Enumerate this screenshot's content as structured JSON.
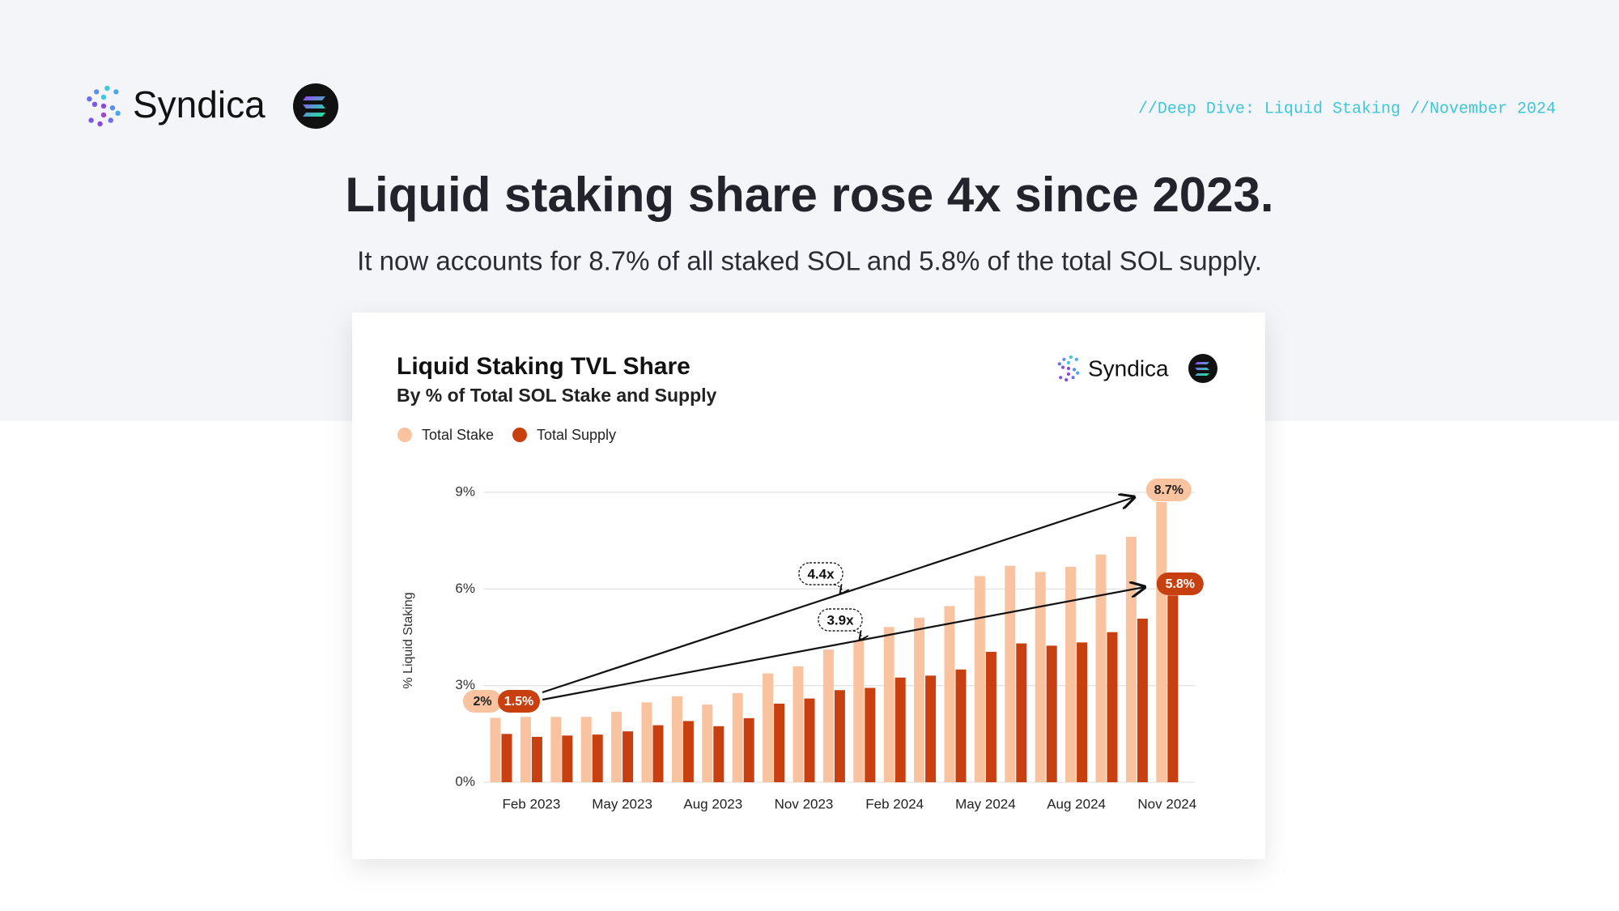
{
  "header": {
    "brand": "Syndica",
    "tagline": "//Deep Dive: Liquid Staking //November 2024",
    "headline": "Liquid staking share rose 4x since 2023.",
    "subheadline": "It now accounts for 8.7% of all staked SOL and 5.8% of the total SOL supply."
  },
  "card": {
    "brand": "Syndica"
  },
  "chart_data": {
    "type": "bar",
    "title": "Liquid Staking TVL Share",
    "subtitle": "By % of Total SOL Stake and Supply",
    "ylabel": "% Liquid Staking",
    "categories": [
      null,
      "Feb 2023",
      null,
      null,
      "May 2023",
      null,
      null,
      "Aug 2023",
      null,
      null,
      "Nov 2023",
      null,
      null,
      "Feb 2024",
      null,
      null,
      "May 2024",
      null,
      null,
      "Aug 2024",
      null,
      null,
      "Nov 2024"
    ],
    "series": [
      {
        "name": "Total Stake",
        "color": "#f9c3a0",
        "values": [
          2,
          2.03,
          2.03,
          2.03,
          2.19,
          2.48,
          2.67,
          2.41,
          2.77,
          3.38,
          3.6,
          4.12,
          4.4,
          4.82,
          5.11,
          5.47,
          6.4,
          6.72,
          6.53,
          6.69,
          7.07,
          7.62,
          8.7
        ]
      },
      {
        "name": "Total Supply",
        "color": "#c8400f",
        "values": [
          1.5,
          1.41,
          1.45,
          1.48,
          1.58,
          1.77,
          1.9,
          1.74,
          1.99,
          2.44,
          2.6,
          2.86,
          2.93,
          3.25,
          3.31,
          3.5,
          4.05,
          4.31,
          4.24,
          4.34,
          4.66,
          5.08,
          5.8
        ]
      }
    ],
    "ylim": [
      0,
      9
    ],
    "yticks": [
      {
        "value": 0,
        "label": "0%"
      },
      {
        "value": 3,
        "label": "3%"
      },
      {
        "value": 6,
        "label": "6%"
      },
      {
        "value": 9,
        "label": "9%"
      }
    ],
    "grid": true,
    "annotations": [
      "2%",
      "1.5%",
      "8.7%",
      "5.8%",
      "4.4x",
      "3.9x"
    ]
  }
}
